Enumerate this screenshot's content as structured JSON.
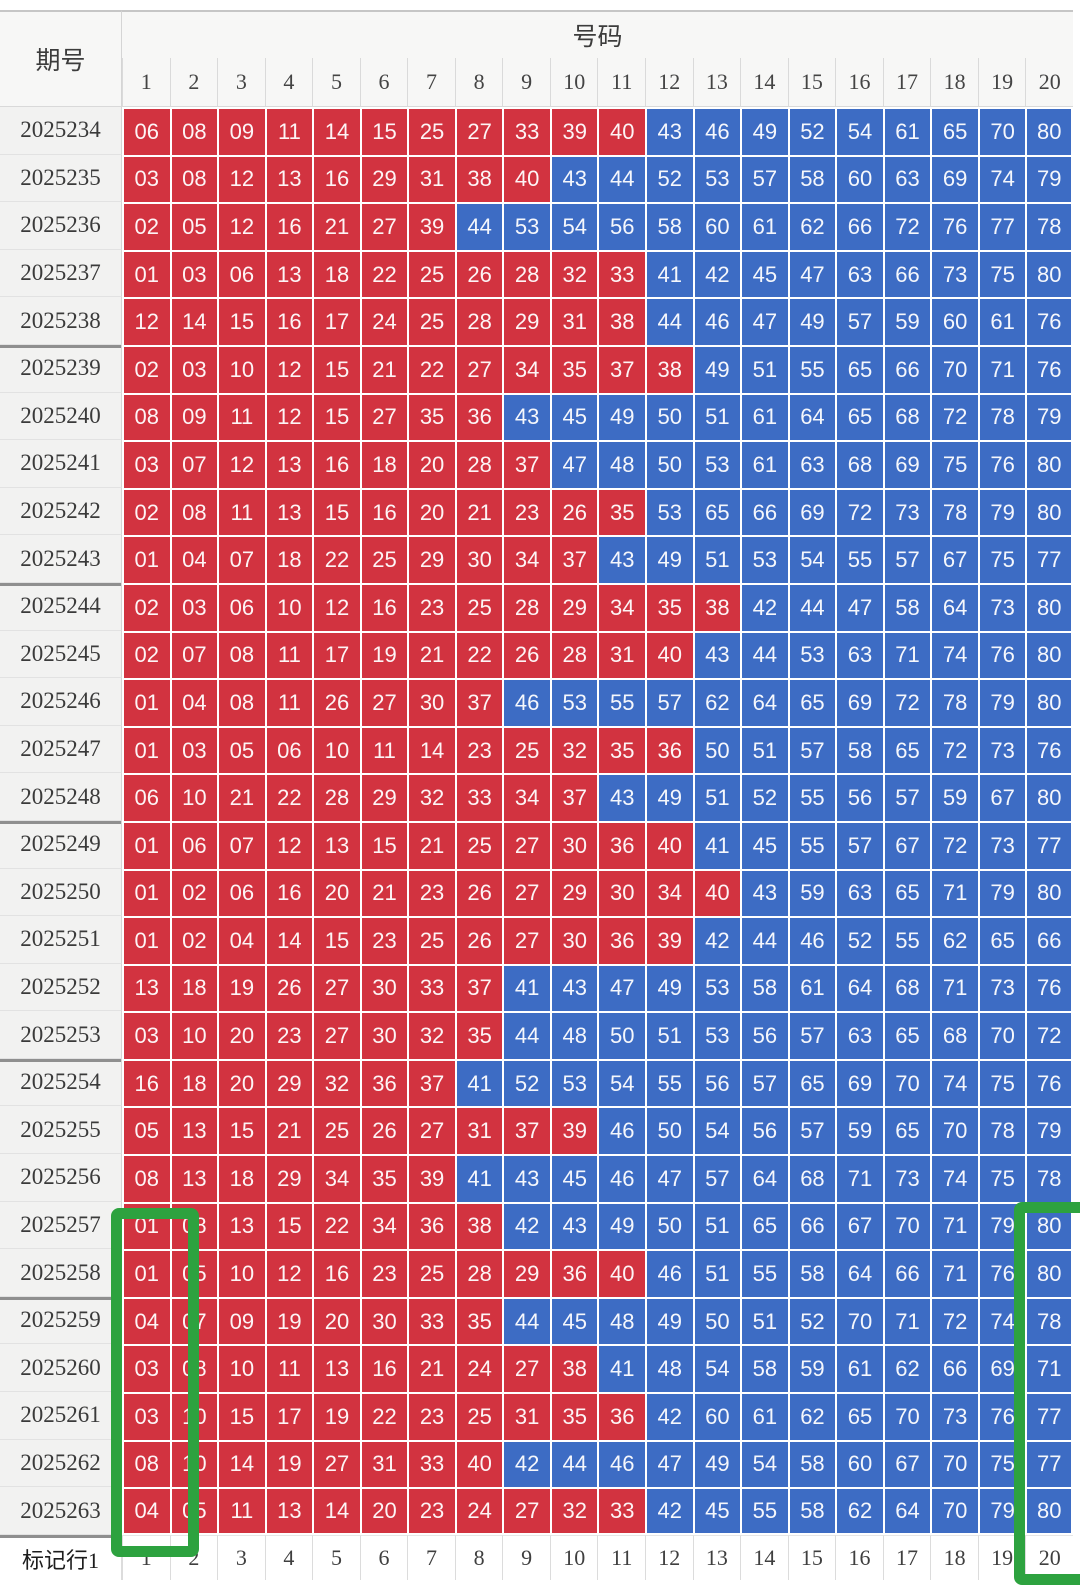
{
  "header": {
    "period_label": "期号",
    "numbers_label": "号码",
    "columns": [
      "1",
      "2",
      "3",
      "4",
      "5",
      "6",
      "7",
      "8",
      "9",
      "10",
      "11",
      "12",
      "13",
      "14",
      "15",
      "16",
      "17",
      "18",
      "19",
      "20"
    ]
  },
  "footer": {
    "label": "标记行1",
    "columns": [
      "1",
      "2",
      "3",
      "4",
      "5",
      "6",
      "7",
      "8",
      "9",
      "10",
      "11",
      "12",
      "13",
      "14",
      "15",
      "16",
      "17",
      "18",
      "19",
      "20"
    ]
  },
  "rows": [
    {
      "period": "2025234",
      "values": [
        "06",
        "08",
        "09",
        "11",
        "14",
        "15",
        "25",
        "27",
        "33",
        "39",
        "40",
        "43",
        "46",
        "49",
        "52",
        "54",
        "61",
        "65",
        "70",
        "80"
      ]
    },
    {
      "period": "2025235",
      "values": [
        "03",
        "08",
        "12",
        "13",
        "16",
        "29",
        "31",
        "38",
        "40",
        "43",
        "44",
        "52",
        "53",
        "57",
        "58",
        "60",
        "63",
        "69",
        "74",
        "79"
      ]
    },
    {
      "period": "2025236",
      "values": [
        "02",
        "05",
        "12",
        "16",
        "21",
        "27",
        "39",
        "44",
        "53",
        "54",
        "56",
        "58",
        "60",
        "61",
        "62",
        "66",
        "72",
        "76",
        "77",
        "78"
      ]
    },
    {
      "period": "2025237",
      "values": [
        "01",
        "03",
        "06",
        "13",
        "18",
        "22",
        "25",
        "26",
        "28",
        "32",
        "33",
        "41",
        "42",
        "45",
        "47",
        "63",
        "66",
        "73",
        "75",
        "80"
      ]
    },
    {
      "period": "2025238",
      "values": [
        "12",
        "14",
        "15",
        "16",
        "17",
        "24",
        "25",
        "28",
        "29",
        "31",
        "38",
        "44",
        "46",
        "47",
        "49",
        "57",
        "59",
        "60",
        "61",
        "76"
      ]
    },
    {
      "period": "2025239",
      "values": [
        "02",
        "03",
        "10",
        "12",
        "15",
        "21",
        "22",
        "27",
        "34",
        "35",
        "37",
        "38",
        "49",
        "51",
        "55",
        "65",
        "66",
        "70",
        "71",
        "76"
      ]
    },
    {
      "period": "2025240",
      "values": [
        "08",
        "09",
        "11",
        "12",
        "15",
        "27",
        "35",
        "36",
        "43",
        "45",
        "49",
        "50",
        "51",
        "61",
        "64",
        "65",
        "68",
        "72",
        "78",
        "79"
      ]
    },
    {
      "period": "2025241",
      "values": [
        "03",
        "07",
        "12",
        "13",
        "16",
        "18",
        "20",
        "28",
        "37",
        "47",
        "48",
        "50",
        "53",
        "61",
        "63",
        "68",
        "69",
        "75",
        "76",
        "80"
      ]
    },
    {
      "period": "2025242",
      "values": [
        "02",
        "08",
        "11",
        "13",
        "15",
        "16",
        "20",
        "21",
        "23",
        "26",
        "35",
        "53",
        "65",
        "66",
        "69",
        "72",
        "73",
        "78",
        "79",
        "80"
      ]
    },
    {
      "period": "2025243",
      "values": [
        "01",
        "04",
        "07",
        "18",
        "22",
        "25",
        "29",
        "30",
        "34",
        "37",
        "43",
        "49",
        "51",
        "53",
        "54",
        "55",
        "57",
        "67",
        "75",
        "77"
      ]
    },
    {
      "period": "2025244",
      "values": [
        "02",
        "03",
        "06",
        "10",
        "12",
        "16",
        "23",
        "25",
        "28",
        "29",
        "34",
        "35",
        "38",
        "42",
        "44",
        "47",
        "58",
        "64",
        "73",
        "80"
      ]
    },
    {
      "period": "2025245",
      "values": [
        "02",
        "07",
        "08",
        "11",
        "17",
        "19",
        "21",
        "22",
        "26",
        "28",
        "31",
        "40",
        "43",
        "44",
        "53",
        "63",
        "71",
        "74",
        "76",
        "80"
      ]
    },
    {
      "period": "2025246",
      "values": [
        "01",
        "04",
        "08",
        "11",
        "26",
        "27",
        "30",
        "37",
        "46",
        "53",
        "55",
        "57",
        "62",
        "64",
        "65",
        "69",
        "72",
        "78",
        "79",
        "80"
      ]
    },
    {
      "period": "2025247",
      "values": [
        "01",
        "03",
        "05",
        "06",
        "10",
        "11",
        "14",
        "23",
        "25",
        "32",
        "35",
        "36",
        "50",
        "51",
        "57",
        "58",
        "65",
        "72",
        "73",
        "76"
      ]
    },
    {
      "period": "2025248",
      "values": [
        "06",
        "10",
        "21",
        "22",
        "28",
        "29",
        "32",
        "33",
        "34",
        "37",
        "43",
        "49",
        "51",
        "52",
        "55",
        "56",
        "57",
        "59",
        "67",
        "80"
      ]
    },
    {
      "period": "2025249",
      "values": [
        "01",
        "06",
        "07",
        "12",
        "13",
        "15",
        "21",
        "25",
        "27",
        "30",
        "36",
        "40",
        "41",
        "45",
        "55",
        "57",
        "67",
        "72",
        "73",
        "77"
      ]
    },
    {
      "period": "2025250",
      "values": [
        "01",
        "02",
        "06",
        "16",
        "20",
        "21",
        "23",
        "26",
        "27",
        "29",
        "30",
        "34",
        "40",
        "43",
        "59",
        "63",
        "65",
        "71",
        "79",
        "80"
      ]
    },
    {
      "period": "2025251",
      "values": [
        "01",
        "02",
        "04",
        "14",
        "15",
        "23",
        "25",
        "26",
        "27",
        "30",
        "36",
        "39",
        "42",
        "44",
        "46",
        "52",
        "55",
        "62",
        "65",
        "66"
      ]
    },
    {
      "period": "2025252",
      "values": [
        "13",
        "18",
        "19",
        "26",
        "27",
        "30",
        "33",
        "37",
        "41",
        "43",
        "47",
        "49",
        "53",
        "58",
        "61",
        "64",
        "68",
        "71",
        "73",
        "76"
      ]
    },
    {
      "period": "2025253",
      "values": [
        "03",
        "10",
        "20",
        "23",
        "27",
        "30",
        "32",
        "35",
        "44",
        "48",
        "50",
        "51",
        "53",
        "56",
        "57",
        "63",
        "65",
        "68",
        "70",
        "72"
      ]
    },
    {
      "period": "2025254",
      "values": [
        "16",
        "18",
        "20",
        "29",
        "32",
        "36",
        "37",
        "41",
        "52",
        "53",
        "54",
        "55",
        "56",
        "57",
        "65",
        "69",
        "70",
        "74",
        "75",
        "76"
      ]
    },
    {
      "period": "2025255",
      "values": [
        "05",
        "13",
        "15",
        "21",
        "25",
        "26",
        "27",
        "31",
        "37",
        "39",
        "46",
        "50",
        "54",
        "56",
        "57",
        "59",
        "65",
        "70",
        "78",
        "79"
      ]
    },
    {
      "period": "2025256",
      "values": [
        "08",
        "13",
        "18",
        "29",
        "34",
        "35",
        "39",
        "41",
        "43",
        "45",
        "46",
        "47",
        "57",
        "64",
        "68",
        "71",
        "73",
        "74",
        "75",
        "78"
      ]
    },
    {
      "period": "2025257",
      "values": [
        "01",
        "08",
        "13",
        "15",
        "22",
        "34",
        "36",
        "38",
        "42",
        "43",
        "49",
        "50",
        "51",
        "65",
        "66",
        "67",
        "70",
        "71",
        "79",
        "80"
      ]
    },
    {
      "period": "2025258",
      "values": [
        "01",
        "05",
        "10",
        "12",
        "16",
        "23",
        "25",
        "28",
        "29",
        "36",
        "40",
        "46",
        "51",
        "55",
        "58",
        "64",
        "66",
        "71",
        "76",
        "80"
      ]
    },
    {
      "period": "2025259",
      "values": [
        "04",
        "07",
        "09",
        "19",
        "20",
        "30",
        "33",
        "35",
        "44",
        "45",
        "48",
        "49",
        "50",
        "51",
        "52",
        "70",
        "71",
        "72",
        "74",
        "78"
      ]
    },
    {
      "period": "2025260",
      "values": [
        "03",
        "08",
        "10",
        "11",
        "13",
        "16",
        "21",
        "24",
        "27",
        "38",
        "41",
        "48",
        "54",
        "58",
        "59",
        "61",
        "62",
        "66",
        "69",
        "71"
      ]
    },
    {
      "period": "2025261",
      "values": [
        "03",
        "10",
        "15",
        "17",
        "19",
        "22",
        "23",
        "25",
        "31",
        "35",
        "36",
        "42",
        "60",
        "61",
        "62",
        "65",
        "70",
        "73",
        "76",
        "77"
      ]
    },
    {
      "period": "2025262",
      "values": [
        "08",
        "10",
        "14",
        "19",
        "27",
        "31",
        "33",
        "40",
        "42",
        "44",
        "46",
        "47",
        "49",
        "54",
        "58",
        "60",
        "67",
        "70",
        "75",
        "77"
      ]
    },
    {
      "period": "2025263",
      "values": [
        "04",
        "05",
        "11",
        "13",
        "14",
        "20",
        "23",
        "24",
        "27",
        "32",
        "33",
        "42",
        "45",
        "55",
        "58",
        "62",
        "64",
        "70",
        "79",
        "80"
      ]
    }
  ],
  "color_rule": {
    "red_max": 40
  },
  "group_separator_every": 5,
  "colors": {
    "red": "#d23340",
    "blue": "#3d6cc4",
    "highlight_green": "#2da23f",
    "label_bg": "#f2f2f1",
    "header_bg": "#f7f7f6"
  },
  "highlights": [
    {
      "name": "column-1-recent",
      "rows": [
        "2025257",
        "2025263"
      ],
      "column": "1"
    },
    {
      "name": "column-20-recent",
      "rows": [
        "2025257",
        "2025263"
      ],
      "column": "20"
    }
  ]
}
